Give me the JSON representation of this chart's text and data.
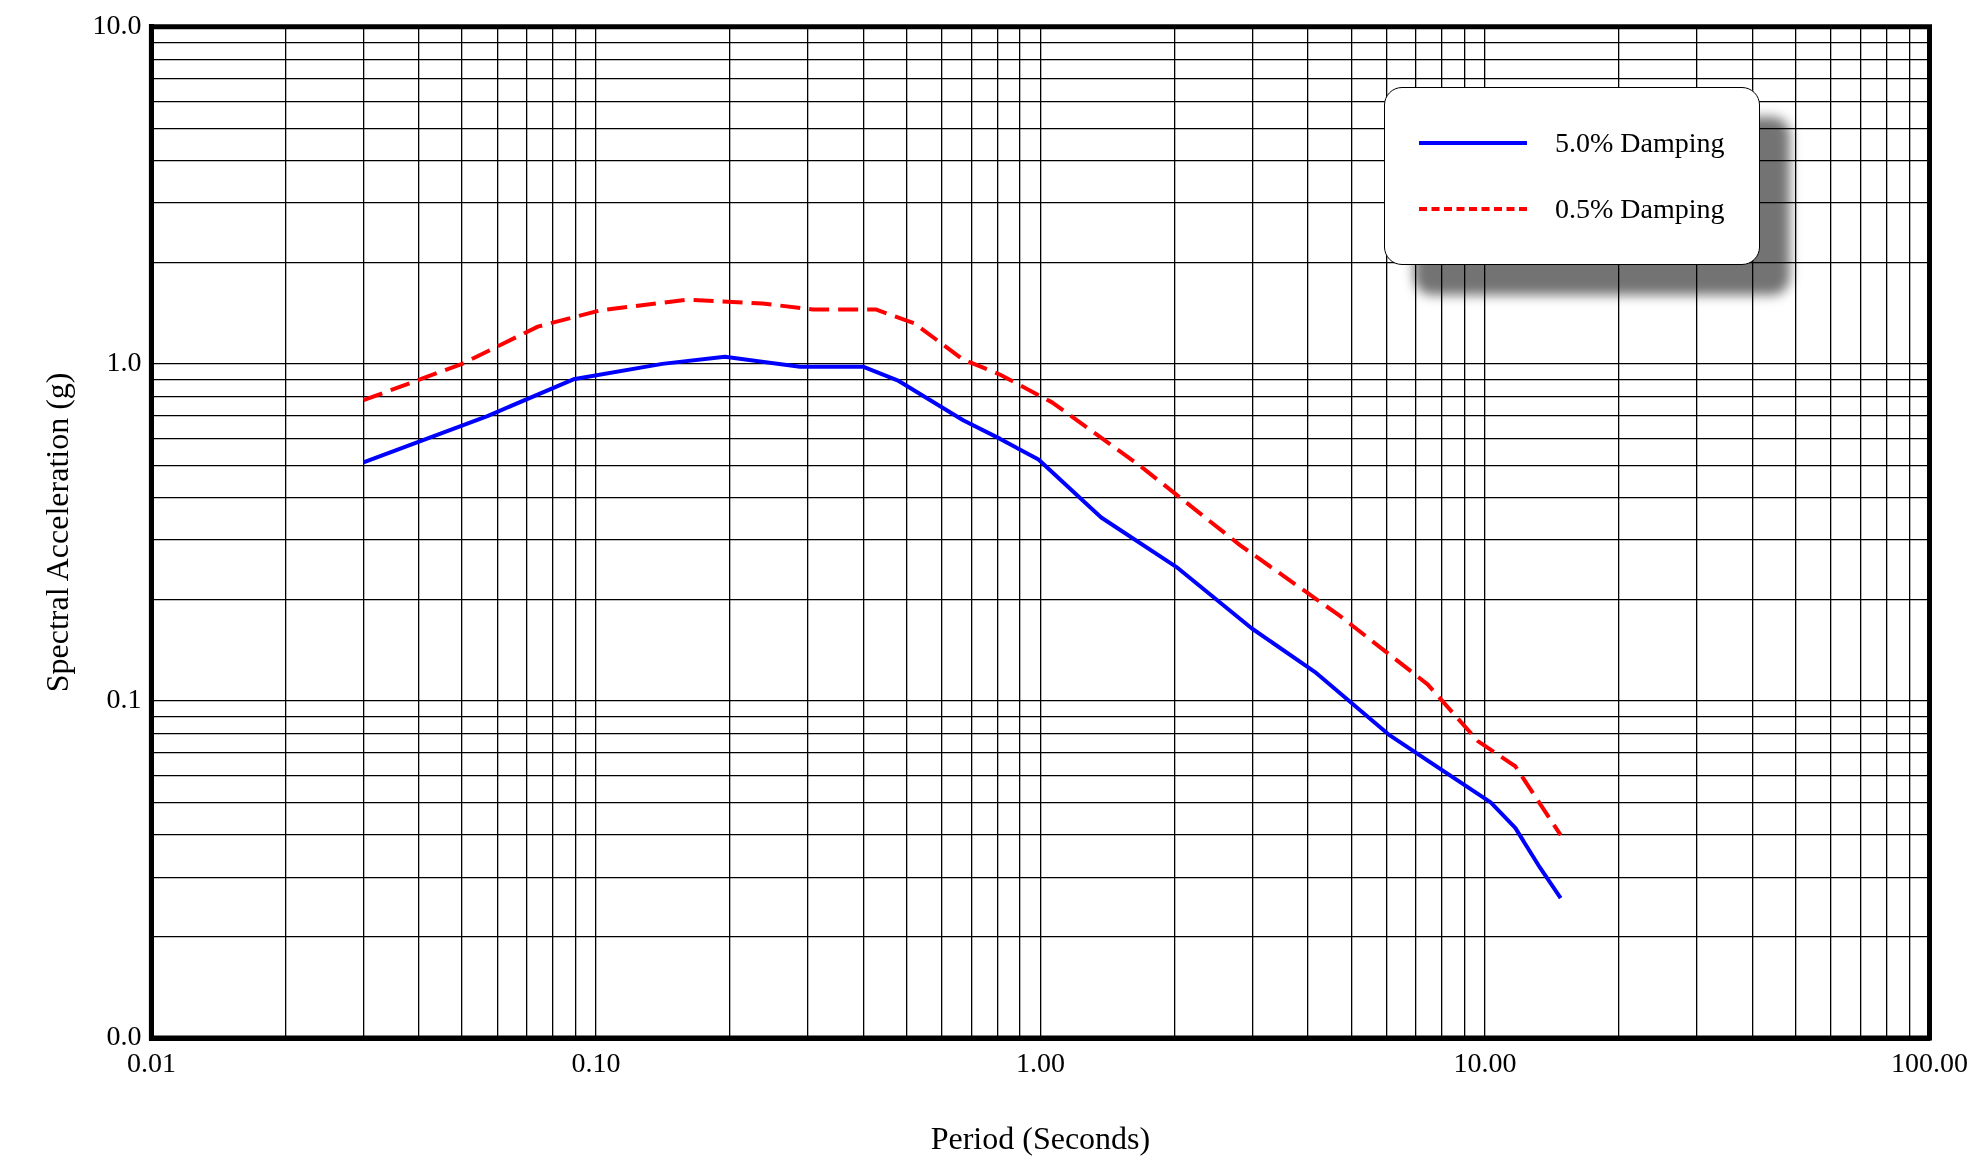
{
  "chart_data": {
    "type": "line",
    "xlabel": "Period (Seconds)",
    "ylabel": "Spectral Acceleration (g)",
    "log": "xy",
    "grid": true,
    "legend": "top right",
    "marker": "none",
    "xlim": [
      0.01,
      100
    ],
    "ylim": [
      0.01,
      10
    ],
    "xticks": [
      {
        "value": 0.01,
        "label": "0.01"
      },
      {
        "value": 0.02,
        "label": null
      },
      {
        "value": 0.03,
        "label": null
      },
      {
        "value": 0.04,
        "label": null
      },
      {
        "value": 0.05,
        "label": null
      },
      {
        "value": 0.06,
        "label": null
      },
      {
        "value": 0.07,
        "label": null
      },
      {
        "value": 0.08,
        "label": null
      },
      {
        "value": 0.09,
        "label": null
      },
      {
        "value": 0.1,
        "label": "0.10"
      },
      {
        "value": 0.2,
        "label": null
      },
      {
        "value": 0.3,
        "label": null
      },
      {
        "value": 0.4,
        "label": null
      },
      {
        "value": 0.5,
        "label": null
      },
      {
        "value": 0.6,
        "label": null
      },
      {
        "value": 0.7,
        "label": null
      },
      {
        "value": 0.8,
        "label": null
      },
      {
        "value": 0.9,
        "label": null
      },
      {
        "value": 1,
        "label": "1.00"
      },
      {
        "value": 2,
        "label": null
      },
      {
        "value": 3,
        "label": null
      },
      {
        "value": 4,
        "label": null
      },
      {
        "value": 5,
        "label": null
      },
      {
        "value": 6,
        "label": null
      },
      {
        "value": 7,
        "label": null
      },
      {
        "value": 8,
        "label": null
      },
      {
        "value": 9,
        "label": null
      },
      {
        "value": 10,
        "label": "10.00"
      },
      {
        "value": 20,
        "label": null
      },
      {
        "value": 30,
        "label": null
      },
      {
        "value": 40,
        "label": null
      },
      {
        "value": 50,
        "label": null
      },
      {
        "value": 60,
        "label": null
      },
      {
        "value": 70,
        "label": null
      },
      {
        "value": 80,
        "label": null
      },
      {
        "value": 90,
        "label": null
      },
      {
        "value": 100,
        "label": "100.00"
      }
    ],
    "yticks": [
      {
        "value": 0.01,
        "label": "0.0"
      },
      {
        "value": 0.02,
        "label": null
      },
      {
        "value": 0.03,
        "label": null
      },
      {
        "value": 0.04,
        "label": null
      },
      {
        "value": 0.05,
        "label": null
      },
      {
        "value": 0.06,
        "label": null
      },
      {
        "value": 0.07,
        "label": null
      },
      {
        "value": 0.08,
        "label": null
      },
      {
        "value": 0.09,
        "label": null
      },
      0.1,
      {
        "value": 0.2,
        "label": null
      },
      {
        "value": 0.3,
        "label": null
      },
      {
        "value": 0.4,
        "label": null
      },
      {
        "value": 0.5,
        "label": null
      },
      {
        "value": 0.6,
        "label": null
      },
      {
        "value": 0.7,
        "label": null
      },
      {
        "value": 0.8,
        "label": null
      },
      {
        "value": 0.9,
        "label": null
      },
      {
        "value": 1,
        "label": "1.0"
      },
      {
        "value": 2,
        "label": null
      },
      {
        "value": 3,
        "label": null
      },
      {
        "value": 4,
        "label": null
      },
      {
        "value": 5,
        "label": null
      },
      {
        "value": 6,
        "label": null
      },
      {
        "value": 7,
        "label": null
      },
      {
        "value": 8,
        "label": null
      },
      {
        "value": 9,
        "label": null
      },
      {
        "value": 10,
        "label": "10.0"
      }
    ],
    "series": [
      {
        "name": "5.0% Damping",
        "color": "#0000ff",
        "line_style": "solid",
        "x": [
          0.03,
          0.057,
          0.089,
          0.141,
          0.195,
          0.288,
          0.4,
          0.48,
          0.67,
          0.81,
          0.99,
          1.37,
          2.02,
          2.99,
          4.14,
          6.11,
          10.3,
          11.7,
          13.3,
          14.8
        ],
        "values": [
          0.51,
          0.7,
          0.9,
          1.0,
          1.05,
          0.98,
          0.98,
          0.89,
          0.68,
          0.6,
          0.52,
          0.35,
          0.25,
          0.164,
          0.122,
          0.079,
          0.05,
          0.042,
          0.032,
          0.026
        ]
      },
      {
        "name": "0.5% Damping",
        "color": "#ff0000",
        "line_style": "dashed",
        "x": [
          0.03,
          0.05,
          0.074,
          0.102,
          0.16,
          0.237,
          0.308,
          0.426,
          0.52,
          0.67,
          0.81,
          1.06,
          1.67,
          2.81,
          4.71,
          7.43,
          9.64,
          11.7,
          14.8
        ],
        "values": [
          0.78,
          1.0,
          1.29,
          1.44,
          1.55,
          1.51,
          1.45,
          1.45,
          1.32,
          1.03,
          0.93,
          0.77,
          0.5,
          0.29,
          0.179,
          0.112,
          0.076,
          0.064,
          0.04
        ]
      }
    ]
  }
}
